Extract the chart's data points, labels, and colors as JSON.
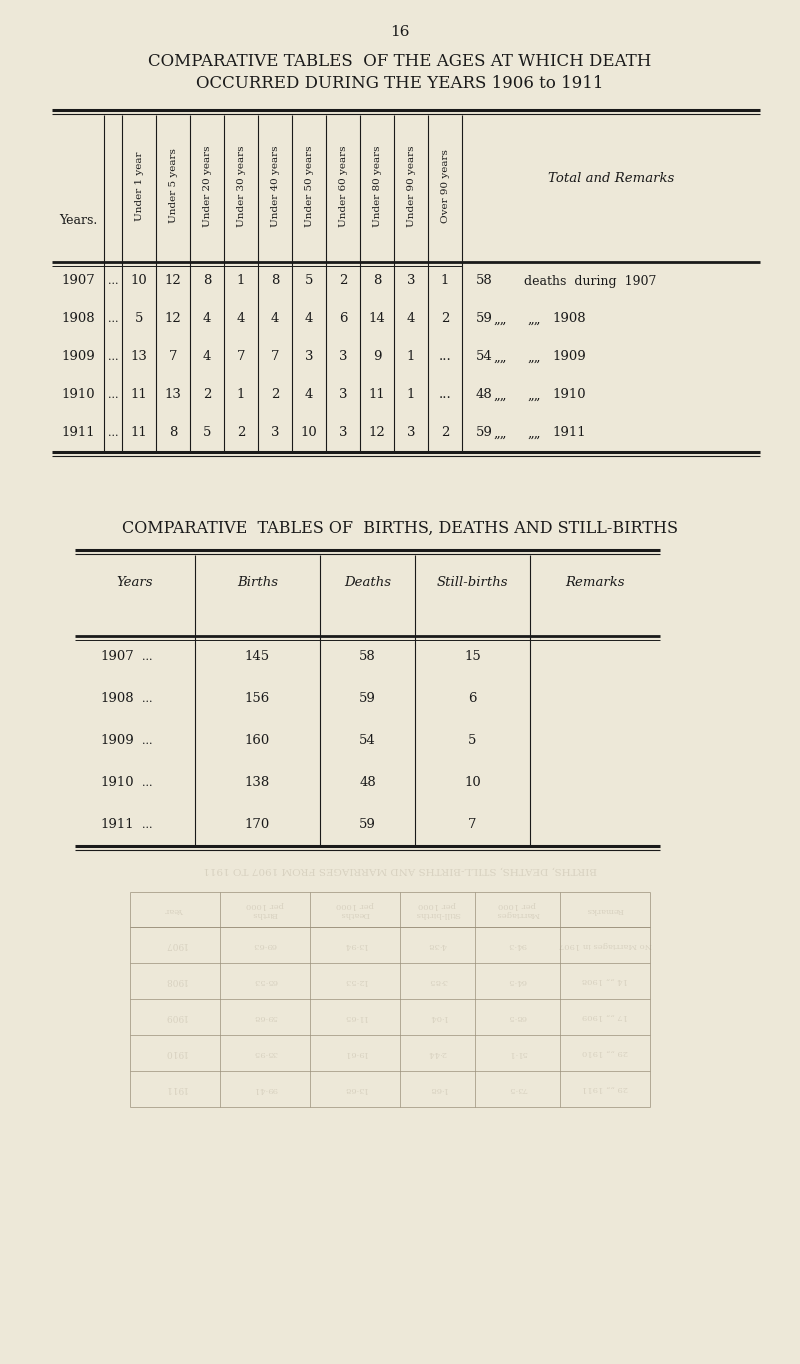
{
  "page_number": "16",
  "title1": "COMPARATIVE TABLES  OF THE AGES AT WHICH DEATH",
  "title2": "OCCURRED DURING THE YEARS 1906 to 1911",
  "table1_col_headers": [
    "Under 1 year",
    "Under 5 years",
    "Under 20 years",
    "Under 30 years",
    "Under 40 years",
    "Under 50 years",
    "Under 60 years",
    "Under 80 years",
    "Under 90 years",
    "Over 90 years"
  ],
  "table1_row_header": "Years.",
  "table1_last_col": "Total and Remarks",
  "table1_data": [
    {
      "year": "1907",
      "vals": [
        10,
        12,
        8,
        1,
        8,
        5,
        2,
        8,
        3,
        1
      ],
      "total": 58,
      "remark1": "deaths during",
      "remark2": "1907"
    },
    {
      "year": "1908",
      "vals": [
        5,
        12,
        4,
        4,
        4,
        4,
        6,
        14,
        4,
        2
      ],
      "total": 59,
      "remark1": "„„",
      "remark2": "„„",
      "remark3": "1908"
    },
    {
      "year": "1909",
      "vals": [
        13,
        7,
        4,
        7,
        7,
        3,
        3,
        9,
        1,
        "..."
      ],
      "total": 54,
      "remark1": "„„",
      "remark2": "„„",
      "remark3": "1909"
    },
    {
      "year": "1910",
      "vals": [
        11,
        13,
        2,
        1,
        2,
        4,
        3,
        11,
        1,
        "..."
      ],
      "total": 48,
      "remark1": "„„",
      "remark2": "„„",
      "remark3": "1910"
    },
    {
      "year": "1911",
      "vals": [
        11,
        8,
        5,
        2,
        3,
        10,
        3,
        12,
        3,
        2
      ],
      "total": 59,
      "remark1": "„„",
      "remark2": "„„",
      "remark3": "1911"
    }
  ],
  "title3": "COMPARATIVE  TABLES OF  BIRTHS, DEATHS AND STILL-BIRTHS",
  "table2_col_headers": [
    "Years",
    "Births",
    "Deaths",
    "Still-births",
    "Remarks"
  ],
  "table2_data": [
    {
      "year": "1907",
      "births": 145,
      "deaths": 58,
      "stillbirths": 15
    },
    {
      "year": "1908",
      "births": 156,
      "deaths": 59,
      "stillbirths": 6
    },
    {
      "year": "1909",
      "births": 160,
      "deaths": 54,
      "stillbirths": 5
    },
    {
      "year": "1910",
      "births": 138,
      "deaths": 48,
      "stillbirths": 10
    },
    {
      "year": "1911",
      "births": 170,
      "deaths": 59,
      "stillbirths": 7
    }
  ],
  "ghost_title": "BIRTHS, DEATHS, STILL-BIRTHS AND MARRIAGES FROM 1907 TO 1911",
  "ghost_col_headers": [
    "Year",
    "Births per 1000",
    "Deaths per 1000",
    "Still-births per 1000",
    "Marriages per 1000",
    "Remarks"
  ],
  "ghost_years": [
    "1907",
    "1908",
    "1909",
    "1910",
    "1911"
  ],
  "ghost_vals": [
    [
      "69·63",
      "13·94",
      "4·38",
      "94·3",
      "No Marriages in 1907"
    ],
    [
      "65·53",
      "12·53",
      "3·85",
      "64·5",
      "14 „„ 1908"
    ],
    [
      "59·68",
      "11·65",
      "1·04",
      "68·5",
      "17 „„ 1909"
    ],
    [
      "35·95",
      "19·61",
      "2·44",
      "51·1",
      "29 „„ 1910"
    ],
    [
      "99·41",
      "13·68",
      "1·68",
      "73·5",
      "29 „„ 1911"
    ]
  ],
  "bg_color": "#ede8d8",
  "text_color": "#1a1a1a",
  "ghost_color": "#9a8f7a",
  "ghost_alpha": 0.25
}
